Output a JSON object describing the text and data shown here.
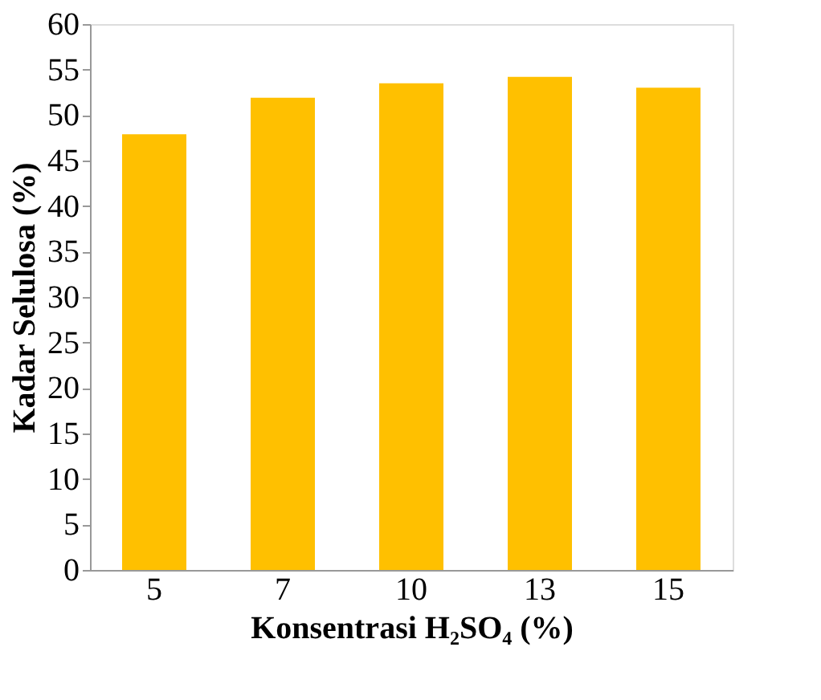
{
  "chart_data": {
    "type": "bar",
    "xlabel": "Konsentrasi H₂SO₄ (%)",
    "ylabel": "Kadar Selulosa (%)",
    "categories": [
      "5",
      "7",
      "10",
      "13",
      "15"
    ],
    "values": [
      47.9,
      51.9,
      53.5,
      54.2,
      53.0
    ],
    "color": "#ffc000",
    "ylim": [
      0,
      60
    ],
    "yticks": [
      0,
      5,
      10,
      15,
      20,
      25,
      30,
      35,
      40,
      45,
      50,
      55,
      60
    ],
    "grid": false
  }
}
